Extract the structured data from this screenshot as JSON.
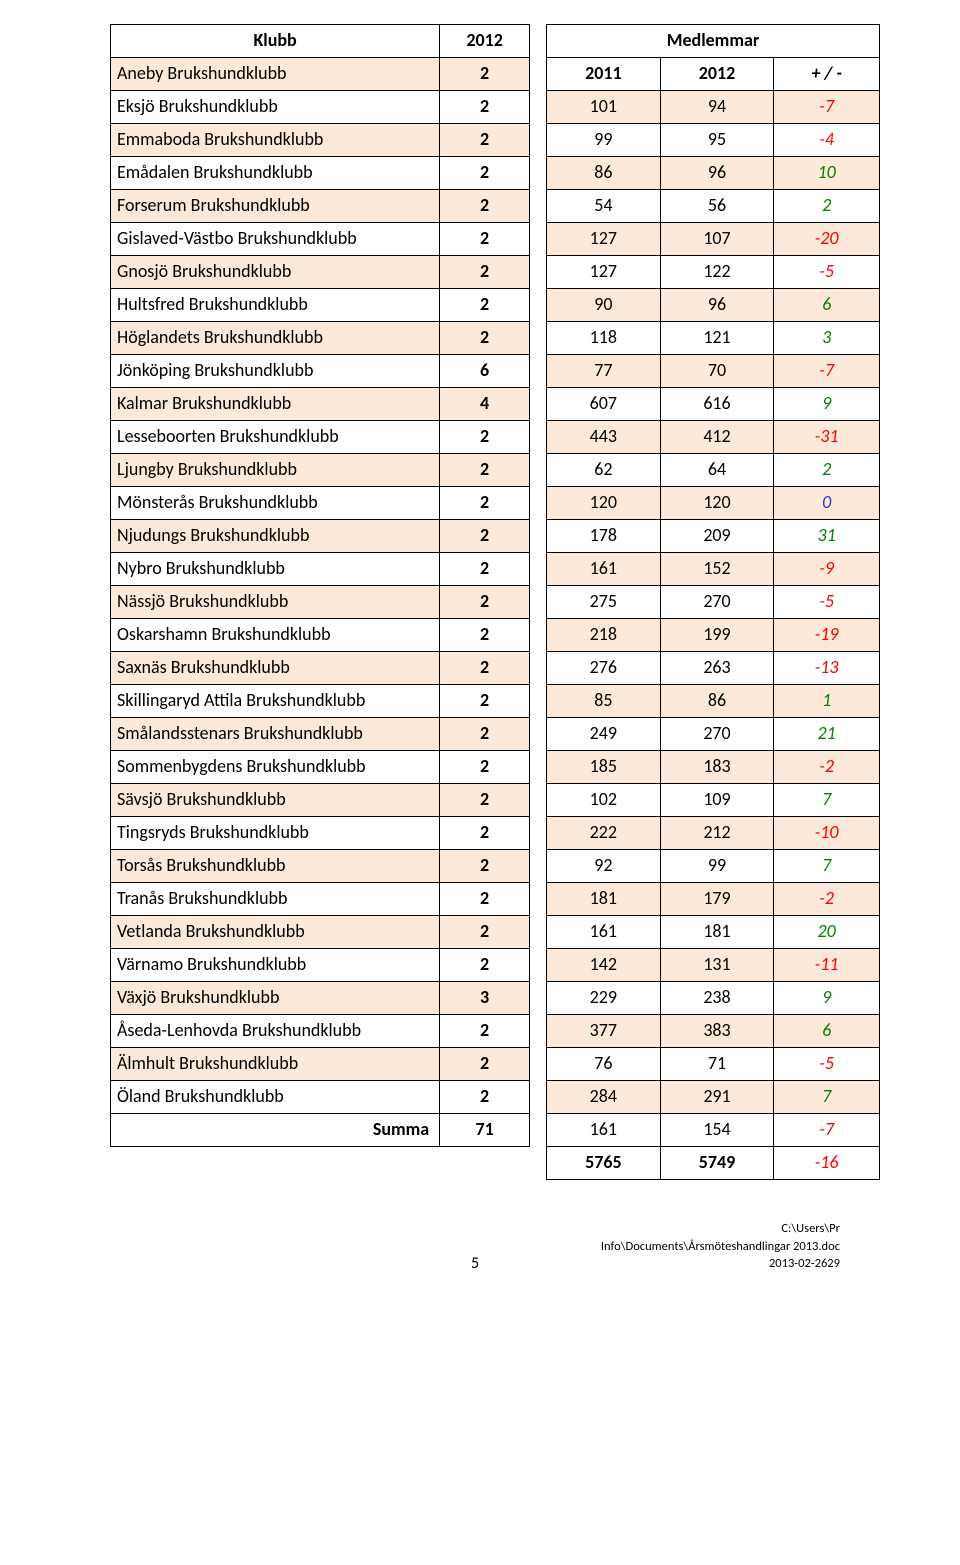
{
  "header_left": {
    "klubb": "Klubb",
    "year": "2012"
  },
  "header_right": {
    "group": "Medlemmar",
    "c1": "2011",
    "c2": "2012",
    "c3": "+ / -"
  },
  "summa_label": "Summa",
  "summa_year": "71",
  "summa_a": "5765",
  "summa_b": "5749",
  "summa_c": "-16",
  "footer_page": "5",
  "footer_path1": "C:\\Users\\Pr Info\\Documents\\Årsmöteshandlingar 2013.doc",
  "footer_path2": "2013-02-2629",
  "rows": [
    {
      "klubb": "Aneby Brukshundklubb",
      "y": "2",
      "a": "101",
      "b": "94",
      "c": "-7",
      "hl": true,
      "sign": "neg"
    },
    {
      "klubb": "Eksjö Brukshundklubb",
      "y": "2",
      "a": "99",
      "b": "95",
      "c": "-4",
      "hl": false,
      "sign": "neg"
    },
    {
      "klubb": "Emmaboda Brukshundklubb",
      "y": "2",
      "a": "86",
      "b": "96",
      "c": "10",
      "hl": true,
      "sign": "pos"
    },
    {
      "klubb": "Emådalen Brukshundklubb",
      "y": "2",
      "a": "54",
      "b": "56",
      "c": "2",
      "hl": false,
      "sign": "pos"
    },
    {
      "klubb": "Forserum Brukshundklubb",
      "y": "2",
      "a": "127",
      "b": "107",
      "c": "-20",
      "hl": true,
      "sign": "neg"
    },
    {
      "klubb": "Gislaved-Västbo Brukshundklubb",
      "y": "2",
      "a": "127",
      "b": "122",
      "c": "-5",
      "hl": false,
      "sign": "neg"
    },
    {
      "klubb": "Gnosjö Brukshundklubb",
      "y": "2",
      "a": "90",
      "b": "96",
      "c": "6",
      "hl": true,
      "sign": "pos"
    },
    {
      "klubb": "Hultsfred Brukshundklubb",
      "y": "2",
      "a": "118",
      "b": "121",
      "c": "3",
      "hl": false,
      "sign": "pos"
    },
    {
      "klubb": "Höglandets Brukshundklubb",
      "y": "2",
      "a": "77",
      "b": "70",
      "c": "-7",
      "hl": true,
      "sign": "neg"
    },
    {
      "klubb": "Jönköping Brukshundklubb",
      "y": "6",
      "a": "607",
      "b": "616",
      "c": "9",
      "hl": false,
      "sign": "pos"
    },
    {
      "klubb": "Kalmar Brukshundklubb",
      "y": "4",
      "a": "443",
      "b": "412",
      "c": "-31",
      "hl": true,
      "sign": "neg"
    },
    {
      "klubb": "Lesseboorten Brukshundklubb",
      "y": "2",
      "a": "62",
      "b": "64",
      "c": "2",
      "hl": false,
      "sign": "pos"
    },
    {
      "klubb": "Ljungby Brukshundklubb",
      "y": "2",
      "a": "120",
      "b": "120",
      "c": "0",
      "hl": true,
      "sign": "zero"
    },
    {
      "klubb": "Mönsterås Brukshundklubb",
      "y": "2",
      "a": "178",
      "b": "209",
      "c": "31",
      "hl": false,
      "sign": "pos"
    },
    {
      "klubb": "Njudungs Brukshundklubb",
      "y": "2",
      "a": "161",
      "b": "152",
      "c": "-9",
      "hl": true,
      "sign": "neg"
    },
    {
      "klubb": "Nybro Brukshundklubb",
      "y": "2",
      "a": "275",
      "b": "270",
      "c": "-5",
      "hl": false,
      "sign": "neg"
    },
    {
      "klubb": "Nässjö Brukshundklubb",
      "y": "2",
      "a": "218",
      "b": "199",
      "c": "-19",
      "hl": true,
      "sign": "neg"
    },
    {
      "klubb": "Oskarshamn Brukshundklubb",
      "y": "2",
      "a": "276",
      "b": "263",
      "c": "-13",
      "hl": false,
      "sign": "neg"
    },
    {
      "klubb": "Saxnäs Brukshundklubb",
      "y": "2",
      "a": "85",
      "b": "86",
      "c": "1",
      "hl": true,
      "sign": "pos"
    },
    {
      "klubb": "Skillingaryd Attila Brukshundklubb",
      "y": "2",
      "a": "249",
      "b": "270",
      "c": "21",
      "hl": false,
      "sign": "pos"
    },
    {
      "klubb": "Smålandsstenars Brukshundklubb",
      "y": "2",
      "a": "185",
      "b": "183",
      "c": "-2",
      "hl": true,
      "sign": "neg"
    },
    {
      "klubb": "Sommenbygdens Brukshundklubb",
      "y": "2",
      "a": "102",
      "b": "109",
      "c": "7",
      "hl": false,
      "sign": "pos"
    },
    {
      "klubb": "Sävsjö Brukshundklubb",
      "y": "2",
      "a": "222",
      "b": "212",
      "c": "-10",
      "hl": true,
      "sign": "neg"
    },
    {
      "klubb": "Tingsryds Brukshundklubb",
      "y": "2",
      "a": "92",
      "b": "99",
      "c": "7",
      "hl": false,
      "sign": "pos"
    },
    {
      "klubb": "Torsås Brukshundklubb",
      "y": "2",
      "a": "181",
      "b": "179",
      "c": "-2",
      "hl": true,
      "sign": "neg"
    },
    {
      "klubb": "Tranås Brukshundklubb",
      "y": "2",
      "a": "161",
      "b": "181",
      "c": "20",
      "hl": false,
      "sign": "pos"
    },
    {
      "klubb": "Vetlanda Brukshundklubb",
      "y": "2",
      "a": "142",
      "b": "131",
      "c": "-11",
      "hl": true,
      "sign": "neg"
    },
    {
      "klubb": "Värnamo Brukshundklubb",
      "y": "2",
      "a": "229",
      "b": "238",
      "c": "9",
      "hl": false,
      "sign": "pos"
    },
    {
      "klubb": "Växjö Brukshundklubb",
      "y": "3",
      "a": "377",
      "b": "383",
      "c": "6",
      "hl": true,
      "sign": "pos"
    },
    {
      "klubb": "Åseda-Lenhovda Brukshundklubb",
      "y": "2",
      "a": "76",
      "b": "71",
      "c": "-5",
      "hl": false,
      "sign": "neg"
    },
    {
      "klubb": "Älmhult Brukshundklubb",
      "y": "2",
      "a": "284",
      "b": "291",
      "c": "7",
      "hl": true,
      "sign": "pos"
    },
    {
      "klubb": "Öland Brukshundklubb",
      "y": "2",
      "a": "161",
      "b": "154",
      "c": "-7",
      "hl": false,
      "sign": "neg"
    }
  ]
}
